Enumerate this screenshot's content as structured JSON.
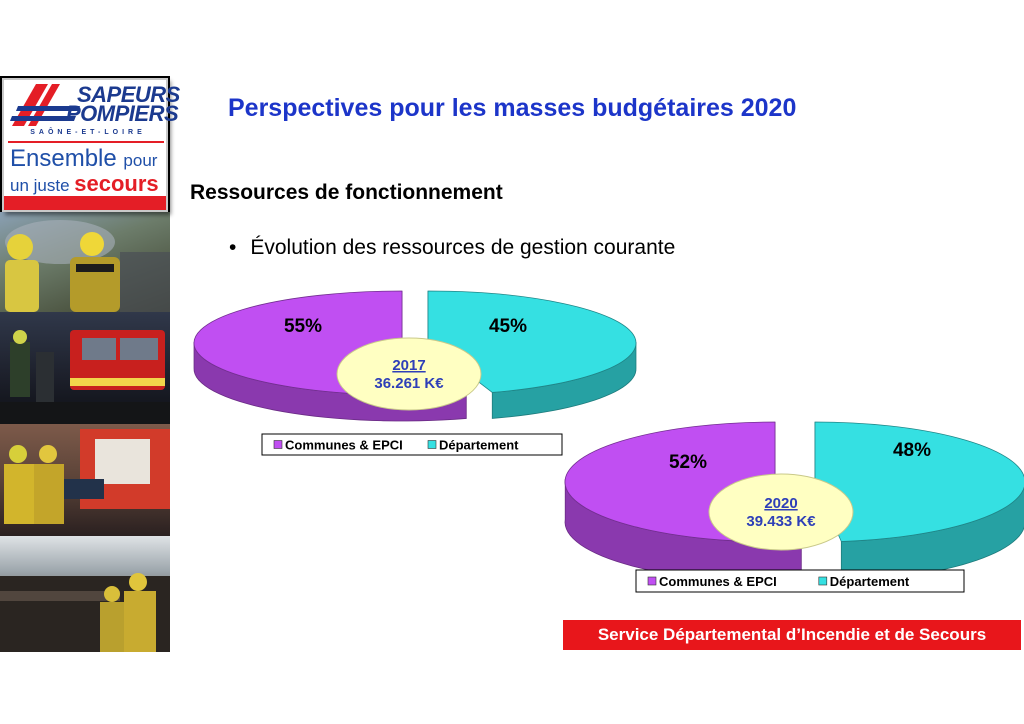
{
  "logo": {
    "line1": "SAPEURS",
    "line2": "POMPIERS",
    "region": "SAÔNE-ET-LOIRE",
    "tagline_1a": "Ensemble",
    "tagline_1b": "pour",
    "tagline_2a": "un juste",
    "tagline_2b": "secours"
  },
  "header": {
    "title": "Perspectives pour les masses budgétaires 2020",
    "section": "Ressources de fonctionnement",
    "bullet": "Évolution des ressources de gestion courante"
  },
  "footer": {
    "text": "Service Départemental d’Incendie et de Secours"
  },
  "colors": {
    "title_blue": "#1c35c9",
    "communes": "#c04ff2",
    "departement": "#35e0e2",
    "center_label_bg": "#ffffc2",
    "footer_red": "#e8161b"
  },
  "chart_data": [
    {
      "type": "pie",
      "style": "3d-exploded",
      "year": "2017",
      "total": "36.261 K€",
      "categories": [
        "Communes & EPCI",
        "Département"
      ],
      "values": [
        55,
        45
      ],
      "value_labels": [
        "55%",
        "45%"
      ],
      "legend": [
        "Communes & EPCI",
        "Département"
      ]
    },
    {
      "type": "pie",
      "style": "3d-exploded",
      "year": "2020",
      "total": "39.433 K€",
      "categories": [
        "Communes & EPCI",
        "Département"
      ],
      "values": [
        52,
        48
      ],
      "value_labels": [
        "52%",
        "48%"
      ],
      "legend": [
        "Communes & EPCI",
        "Département"
      ]
    }
  ]
}
